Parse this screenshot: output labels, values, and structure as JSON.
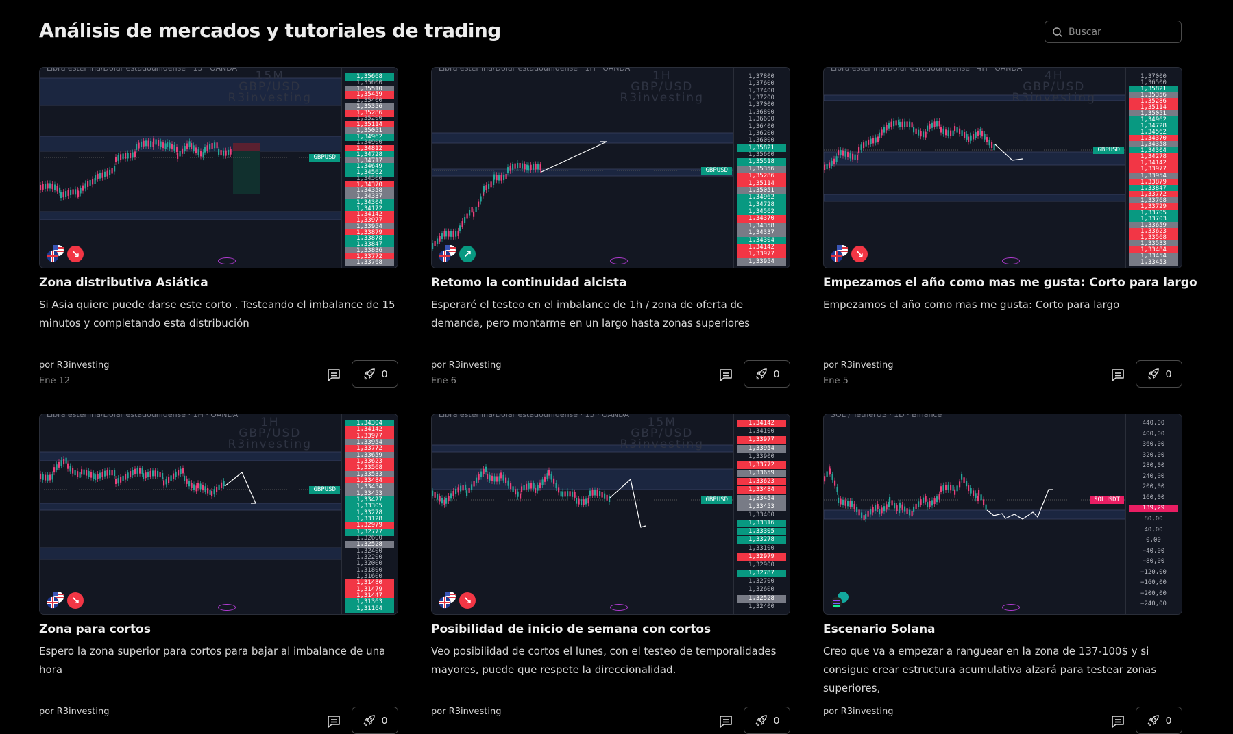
{
  "header": {
    "title": "Análisis de mercados y tutoriales de trading",
    "search_placeholder": "Buscar"
  },
  "colors": {
    "green": "#089981",
    "red": "#f23645",
    "gray": "#787b86",
    "pink": "#e91e63",
    "background": "#000000",
    "chart_bg": "#131722"
  },
  "ideas": [
    {
      "title": "Zona distributiva Asiática",
      "description": "Si Asia quiere puede darse este corto . Testeando el imbalance de 15 minutos y completando esta distribución",
      "author": "por R3investing",
      "date": "Ene 12",
      "boosts": "0",
      "direction": "short",
      "chart": {
        "header": "Libra esterlina/Dólar estadounidense · 15 · OANDA",
        "watermark": [
          "15M",
          "GBP/USD",
          "R3investing"
        ],
        "symbol": "GBPUSD",
        "currency_icon": "gbp-usd-flags-icon",
        "price_labels": [
          [
            "1,35668",
            "g"
          ],
          [
            "1,35600",
            "n"
          ],
          [
            "1,35510",
            "gray"
          ],
          [
            "1,35459",
            "r"
          ],
          [
            "1,35400",
            "n"
          ],
          [
            "1,35356",
            "gray"
          ],
          [
            "1,35286",
            "r"
          ],
          [
            "1,35200",
            "n"
          ],
          [
            "1,35114",
            "r"
          ],
          [
            "1,35051",
            "gray"
          ],
          [
            "1,34962",
            "g"
          ],
          [
            "1,34900",
            "n"
          ],
          [
            "1,34812",
            "r"
          ],
          [
            "1,34728",
            "g"
          ],
          [
            "1,34717",
            "gray"
          ],
          [
            "1,34649",
            "g"
          ],
          [
            "1,34562",
            "g"
          ],
          [
            "1,34500",
            "n"
          ],
          [
            "1,34370",
            "r"
          ],
          [
            "1,34358",
            "gray"
          ],
          [
            "1,34337",
            "gray"
          ],
          [
            "1,34304",
            "g"
          ],
          [
            "1,34172",
            "g"
          ],
          [
            "1,34142",
            "r"
          ],
          [
            "1,33977",
            "r"
          ],
          [
            "1,33954",
            "gray"
          ],
          [
            "1,33879",
            "r"
          ],
          [
            "1,33878",
            "g"
          ],
          [
            "1,33847",
            "g"
          ],
          [
            "1,33836",
            "gray"
          ],
          [
            "1,33772",
            "r"
          ],
          [
            "1,33768",
            "gray"
          ]
        ]
      }
    },
    {
      "title": "Retomo la continuidad alcista",
      "description": "Esperaré el testeo en el imbalance de 1h / zona de oferta de demanda, pero montarme en un largo hasta zonas superiores",
      "author": "por R3investing",
      "date": "Ene 6",
      "boosts": "0",
      "direction": "long",
      "chart": {
        "header": "Libra esterlina/Dólar estadounidense · 1H · OANDA",
        "watermark": [
          "1H",
          "GBP/USD",
          "R3investing"
        ],
        "symbol": "GBPUSD",
        "currency_icon": "gbp-usd-flags-icon",
        "price_labels": [
          [
            "1,37800",
            "n"
          ],
          [
            "1,37600",
            "n"
          ],
          [
            "1,37400",
            "n"
          ],
          [
            "1,37200",
            "n"
          ],
          [
            "1,37000",
            "n"
          ],
          [
            "1,36800",
            "n"
          ],
          [
            "1,36600",
            "n"
          ],
          [
            "1,36400",
            "n"
          ],
          [
            "1,36200",
            "n"
          ],
          [
            "1,36000",
            "n"
          ],
          [
            "1,35821",
            "g"
          ],
          [
            "1,35600",
            "n"
          ],
          [
            "1,35518",
            "g"
          ],
          [
            "1,35356",
            "gray"
          ],
          [
            "1,35286",
            "r"
          ],
          [
            "1,35114",
            "r"
          ],
          [
            "1,35051",
            "gray"
          ],
          [
            "1,34962",
            "g"
          ],
          [
            "1,34728",
            "g"
          ],
          [
            "1,34562",
            "g"
          ],
          [
            "1,34370",
            "r"
          ],
          [
            "1,34358",
            "gray"
          ],
          [
            "1,34337",
            "gray"
          ],
          [
            "1,34304",
            "g"
          ],
          [
            "1,34142",
            "r"
          ],
          [
            "1,33977",
            "r"
          ],
          [
            "1,33954",
            "gray"
          ]
        ]
      }
    },
    {
      "title": "Empezamos el año como mas me gusta: Corto para largo",
      "description": "Empezamos el año como mas me gusta: Corto para largo",
      "author": "por R3investing",
      "date": "Ene 5",
      "boosts": "0",
      "direction": "short",
      "chart": {
        "header": "Libra esterlina/Dólar estadounidense · 4H · OANDA",
        "watermark": [
          "4H",
          "GBP/USD",
          "R3investing"
        ],
        "symbol": "GBPUSD",
        "currency_icon": "gbp-usd-flags-icon",
        "price_labels": [
          [
            "1,37000",
            "n"
          ],
          [
            "1,36500",
            "n"
          ],
          [
            "1,35821",
            "g"
          ],
          [
            "1,35356",
            "gray"
          ],
          [
            "1,35286",
            "r"
          ],
          [
            "1,35114",
            "r"
          ],
          [
            "1,35051",
            "gray"
          ],
          [
            "1,34962",
            "g"
          ],
          [
            "1,34728",
            "g"
          ],
          [
            "1,34562",
            "g"
          ],
          [
            "1,34370",
            "r"
          ],
          [
            "1,34358",
            "gray"
          ],
          [
            "1,34304",
            "g"
          ],
          [
            "1,34278",
            "r"
          ],
          [
            "1,34142",
            "r"
          ],
          [
            "1,33977",
            "r"
          ],
          [
            "1,33954",
            "gray"
          ],
          [
            "1,33879",
            "r"
          ],
          [
            "1,33847",
            "g"
          ],
          [
            "1,33772",
            "r"
          ],
          [
            "1,33768",
            "gray"
          ],
          [
            "1,33729",
            "r"
          ],
          [
            "1,33705",
            "g"
          ],
          [
            "1,33703",
            "g"
          ],
          [
            "1,33659",
            "gray"
          ],
          [
            "1,33623",
            "r"
          ],
          [
            "1,33568",
            "r"
          ],
          [
            "1,33533",
            "gray"
          ],
          [
            "1,33484",
            "r"
          ],
          [
            "1,33454",
            "gray"
          ],
          [
            "1,33453",
            "gray"
          ]
        ]
      }
    },
    {
      "title": "Zona para cortos",
      "description": "Espero la zona superior para cortos para bajar al imbalance de una hora",
      "author": "por R3investing",
      "date": "",
      "boosts": "0",
      "direction": "short",
      "chart": {
        "header": "Libra esterlina/Dólar estadounidense · 1H · OANDA",
        "watermark": [
          "1H",
          "GBP/USD",
          "R3investing"
        ],
        "symbol": "GBPUSD",
        "currency_icon": "gbp-usd-flags-icon",
        "price_labels": [
          [
            "1,34304",
            "g"
          ],
          [
            "1,34142",
            "r"
          ],
          [
            "1,33977",
            "r"
          ],
          [
            "1,33954",
            "gray"
          ],
          [
            "1,33772",
            "r"
          ],
          [
            "1,33659",
            "gray"
          ],
          [
            "1,33623",
            "r"
          ],
          [
            "1,33568",
            "r"
          ],
          [
            "1,33533",
            "gray"
          ],
          [
            "1,33484",
            "r"
          ],
          [
            "1,33454",
            "gray"
          ],
          [
            "1,33453",
            "gray"
          ],
          [
            "1,33427",
            "g"
          ],
          [
            "1,33305",
            "g"
          ],
          [
            "1,33278",
            "g"
          ],
          [
            "1,33128",
            "g"
          ],
          [
            "1,32979",
            "r"
          ],
          [
            "1,32777",
            "g"
          ],
          [
            "1,32600",
            "n"
          ],
          [
            "1,32528",
            "gray"
          ],
          [
            "1,32400",
            "n"
          ],
          [
            "1,32200",
            "n"
          ],
          [
            "1,32000",
            "n"
          ],
          [
            "1,31800",
            "n"
          ],
          [
            "1,31600",
            "n"
          ],
          [
            "1,31480",
            "r"
          ],
          [
            "1,31479",
            "r"
          ],
          [
            "1,31447",
            "r"
          ],
          [
            "1,31363",
            "g"
          ],
          [
            "1,31164",
            "g"
          ]
        ]
      }
    },
    {
      "title": "Posibilidad de inicio de semana con cortos",
      "description": "Veo posibilidad de cortos el lunes, con el testeo de temporalidades mayores, puede que respete la direccionalidad.",
      "author": "por R3investing",
      "date": "",
      "boosts": "0",
      "direction": "short",
      "chart": {
        "header": "Libra esterlina/Dólar estadounidense · 15 · OANDA",
        "watermark": [
          "15M",
          "GBP/USD",
          "R3investing"
        ],
        "symbol": "GBPUSD",
        "currency_icon": "gbp-usd-flags-icon",
        "price_labels": [
          [
            "1,34142",
            "r"
          ],
          [
            "1,34100",
            "n"
          ],
          [
            "1,33977",
            "r"
          ],
          [
            "1,33954",
            "gray"
          ],
          [
            "1,33900",
            "n"
          ],
          [
            "1,33772",
            "r"
          ],
          [
            "1,33659",
            "gray"
          ],
          [
            "1,33623",
            "r"
          ],
          [
            "1,33484",
            "r"
          ],
          [
            "1,33454",
            "gray"
          ],
          [
            "1,33453",
            "gray"
          ],
          [
            "1,33400",
            "n"
          ],
          [
            "1,33316",
            "g"
          ],
          [
            "1,33305",
            "g"
          ],
          [
            "1,33278",
            "g"
          ],
          [
            "1,33100",
            "n"
          ],
          [
            "1,32979",
            "r"
          ],
          [
            "1,32900",
            "n"
          ],
          [
            "1,32787",
            "g"
          ],
          [
            "1,32700",
            "n"
          ],
          [
            "1,32600",
            "n"
          ],
          [
            "1,32528",
            "gray"
          ],
          [
            "1,32400",
            "n"
          ]
        ]
      }
    },
    {
      "title": "Escenario Solana",
      "description": "Creo que va a empezar a ranguear en la zona de 137-100$ y si consigue crear estructura acumulativa alzará para testear zonas superiores,",
      "author": "por R3investing",
      "date": "",
      "boosts": "0",
      "direction": "none",
      "chart": {
        "header": "SOL / TetherUS · 1D · Binance",
        "watermark": [],
        "symbol": "SOLUSDT",
        "currency_icon": "solana-icon",
        "price_labels": [
          [
            "440,00",
            "n"
          ],
          [
            "400,00",
            "n"
          ],
          [
            "360,00",
            "n"
          ],
          [
            "320,00",
            "n"
          ],
          [
            "280,00",
            "n"
          ],
          [
            "240,00",
            "n"
          ],
          [
            "200,00",
            "n"
          ],
          [
            "160,00",
            "n"
          ],
          [
            "139,29",
            "p"
          ],
          [
            "80,00",
            "n"
          ],
          [
            "40,00",
            "n"
          ],
          [
            "0,00",
            "n"
          ],
          [
            "−40,00",
            "n"
          ],
          [
            "−80,00",
            "n"
          ],
          [
            "−120,00",
            "n"
          ],
          [
            "−160,00",
            "n"
          ],
          [
            "−200,00",
            "n"
          ],
          [
            "−240,00",
            "n"
          ]
        ]
      }
    }
  ]
}
